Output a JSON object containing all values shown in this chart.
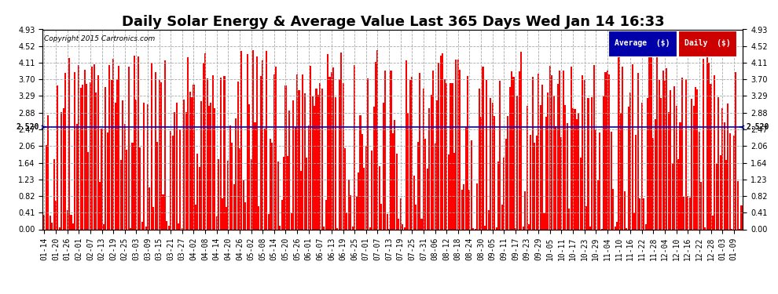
{
  "title": "Daily Solar Energy & Average Value Last 365 Days Wed Jan 14 16:33",
  "copyright": "Copyright 2015 Cartronics.com",
  "average_value": 2.52,
  "average_label": "2.520",
  "ylim": [
    0.0,
    4.93
  ],
  "yticks": [
    0.0,
    0.41,
    0.82,
    1.23,
    1.64,
    2.06,
    2.47,
    2.88,
    3.29,
    3.7,
    4.11,
    4.52,
    4.93
  ],
  "bar_color": "#ff0000",
  "avg_line_color": "#0000cc",
  "background_color": "#ffffff",
  "grid_color": "#aaaaaa",
  "legend_avg_bg": "#0000aa",
  "legend_daily_bg": "#cc0000",
  "title_fontsize": 13,
  "tick_fontsize": 7,
  "n_bars": 365,
  "x_tick_labels": [
    "01-14",
    "01-20",
    "01-26",
    "02-01",
    "02-07",
    "02-13",
    "02-19",
    "02-25",
    "03-03",
    "03-09",
    "03-15",
    "03-21",
    "03-27",
    "04-02",
    "04-08",
    "04-14",
    "04-20",
    "04-26",
    "05-02",
    "05-08",
    "05-14",
    "05-20",
    "05-26",
    "06-01",
    "06-07",
    "06-13",
    "06-19",
    "06-25",
    "07-01",
    "07-07",
    "07-13",
    "07-19",
    "07-25",
    "07-31",
    "08-06",
    "08-12",
    "08-18",
    "08-24",
    "08-30",
    "09-05",
    "09-11",
    "09-17",
    "09-23",
    "09-29",
    "10-05",
    "10-11",
    "10-17",
    "10-23",
    "10-29",
    "11-04",
    "11-10",
    "11-16",
    "11-22",
    "11-28",
    "12-04",
    "12-10",
    "12-16",
    "12-22",
    "12-28",
    "01-03",
    "01-09"
  ],
  "figsize": [
    9.9,
    3.75
  ],
  "dpi": 100
}
